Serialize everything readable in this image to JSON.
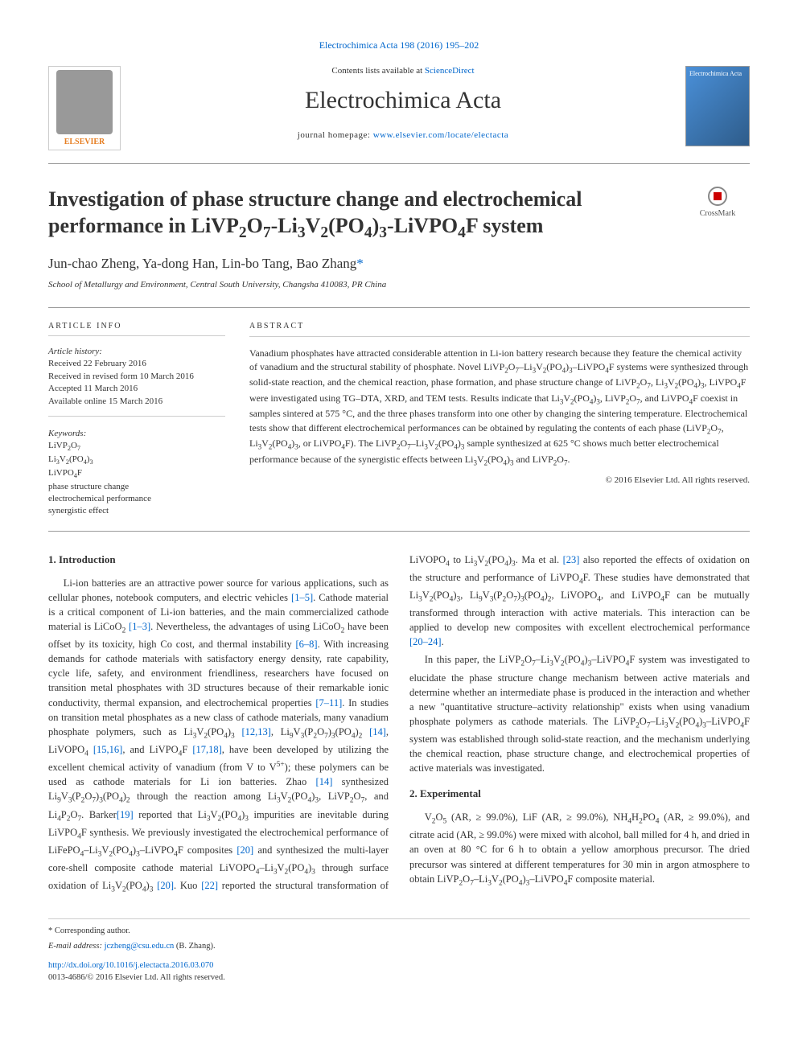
{
  "top_link": {
    "label": "Electrochimica Acta 198 (2016) 195–202"
  },
  "masthead": {
    "contents_prefix": "Contents lists available at ",
    "contents_link": "ScienceDirect",
    "journal_name": "Electrochimica Acta",
    "homepage_prefix": "journal homepage: ",
    "homepage_url": "www.elsevier.com/locate/electacta",
    "elsevier": "ELSEVIER",
    "cover_text": "Electrochimica Acta"
  },
  "crossmark": "CrossMark",
  "title_html": "Investigation of phase structure change and electrochemical performance in LiVP<sub>2</sub>O<sub>7</sub>-Li<sub>3</sub>V<sub>2</sub>(PO<sub>4</sub>)<sub>3</sub>-LiVPO<sub>4</sub>F system",
  "authors_html": "Jun-chao Zheng, Ya-dong Han, Lin-bo Tang, Bao Zhang<span class=\"corr\">*</span>",
  "affiliation": "School of Metallurgy and Environment, Central South University, Changsha 410083, PR China",
  "info": {
    "heading": "ARTICLE INFO",
    "history_label": "Article history:",
    "received": "Received 22 February 2016",
    "revised": "Received in revised form 10 March 2016",
    "accepted": "Accepted 11 March 2016",
    "online": "Available online 15 March 2016",
    "keywords_label": "Keywords:",
    "keywords_html": "LiVP<sub>2</sub>O<sub>7</sub><br>Li<sub>3</sub>V<sub>2</sub>(PO<sub>4</sub>)<sub>3</sub><br>LiVPO<sub>4</sub>F<br>phase structure change<br>electrochemical performance<br>synergistic effect"
  },
  "abstract": {
    "heading": "ABSTRACT",
    "body_html": "Vanadium phosphates have attracted considerable attention in Li-ion battery research because they feature the chemical activity of vanadium and the structural stability of phosphate. Novel LiVP<sub>2</sub>O<sub>7</sub>–Li<sub>3</sub>V<sub>2</sub>(PO<sub>4</sub>)<sub>3</sub>–LiVPO<sub>4</sub>F systems were synthesized through solid-state reaction, and the chemical reaction, phase formation, and phase structure change of LiVP<sub>2</sub>O<sub>7</sub>, Li<sub>3</sub>V<sub>2</sub>(PO<sub>4</sub>)<sub>3</sub>, LiVPO<sub>4</sub>F were investigated using TG–DTA, XRD, and TEM tests. Results indicate that Li<sub>3</sub>V<sub>2</sub>(PO<sub>4</sub>)<sub>3</sub>, LiVP<sub>2</sub>O<sub>7</sub>, and LiVPO<sub>4</sub>F coexist in samples sintered at 575 °C, and the three phases transform into one other by changing the sintering temperature. Electrochemical tests show that different electrochemical performances can be obtained by regulating the contents of each phase (LiVP<sub>2</sub>O<sub>7</sub>, Li<sub>3</sub>V<sub>2</sub>(PO<sub>4</sub>)<sub>3</sub>, or LiVPO<sub>4</sub>F). The LiVP<sub>2</sub>O<sub>7</sub>–Li<sub>3</sub>V<sub>2</sub>(PO<sub>4</sub>)<sub>3</sub> sample synthesized at 625 °C shows much better electrochemical performance because of the synergistic effects between Li<sub>3</sub>V<sub>2</sub>(PO<sub>4</sub>)<sub>3</sub> and LiVP<sub>2</sub>O<sub>7</sub>.",
    "copyright": "© 2016 Elsevier Ltd. All rights reserved."
  },
  "sections": {
    "intro_heading": "1. Introduction",
    "intro_html": "Li-ion batteries are an attractive power source for various applications, such as cellular phones, notebook computers, and electric vehicles <a class=\"ref\">[1–5]</a>. Cathode material is a critical component of Li-ion batteries, and the main commercialized cathode material is LiCoO<sub>2</sub> <a class=\"ref\">[1–3]</a>. Nevertheless, the advantages of using LiCoO<sub>2</sub> have been offset by its toxicity, high Co cost, and thermal instability <a class=\"ref\">[6–8]</a>. With increasing demands for cathode materials with satisfactory energy density, rate capability, cycle life, safety, and environment friendliness, researchers have focused on transition metal phosphates with 3D structures because of their remarkable ionic conductivity, thermal expansion, and electrochemical properties <a class=\"ref\">[7–11]</a>. In studies on transition metal phosphates as a new class of cathode materials, many vanadium phosphate polymers, such as Li<sub>3</sub>V<sub>2</sub>(PO<sub>4</sub>)<sub>3</sub> <a class=\"ref\">[12,13]</a>, Li<sub>9</sub>V<sub>3</sub>(P<sub>2</sub>O<sub>7</sub>)<sub>3</sub>(PO<sub>4</sub>)<sub>2</sub> <a class=\"ref\">[14]</a>, LiVOPO<sub>4</sub> <a class=\"ref\">[15,16]</a>, and LiVPO<sub>4</sub>F <a class=\"ref\">[17,18]</a>, have been developed by utilizing the excellent chemical activity of vanadium (from V to V<sup>5+</sup>); these polymers can be used as cathode materials for Li ion batteries. Zhao <a class=\"ref\">[14]</a> synthesized Li<sub>9</sub>V<sub>3</sub>(P<sub>2</sub>O<sub>7</sub>)<sub>3</sub>(PO<sub>4</sub>)<sub>2</sub> through the reaction among Li<sub>3</sub>V<sub>2</sub>(PO<sub>4</sub>)<sub>3</sub>, LiVP<sub>2</sub>O<sub>7</sub>, and Li<sub>4</sub>P<sub>2</sub>O<sub>7</sub>. Barker<a class=\"ref\">[19]</a> reported that Li<sub>3</sub>V<sub>2</sub>(PO<sub>4</sub>)<sub>3</sub> impurities are inevitable during LiVPO<sub>4</sub>F synthesis. We previously investigated the electrochemical performance of LiFePO<sub>4</sub>–Li<sub>3</sub>V<sub>2</sub>(PO<sub>4</sub>)<sub>3</sub>–LiVPO<sub>4</sub>F composites <a class=\"ref\">[20]</a> and synthesized the multi-layer core-shell composite cathode material LiVOPO<sub>4</sub>–Li<sub>3</sub>V<sub>2</sub>(PO<sub>4</sub>)<sub>3</sub> through surface oxidation of Li<sub>3</sub>V<sub>2</sub>(PO<sub>4</sub>)<sub>3</sub> <a class=\"ref\">[20]</a>. Kuo <a class=\"ref\">[22]</a> reported the structural transformation of LiVOPO<sub>4</sub> to Li<sub>3</sub>V<sub>2</sub>(PO<sub>4</sub>)<sub>3</sub>. Ma et al. <a class=\"ref\">[23]</a> also reported the effects of oxidation on the structure and performance of LiVPO<sub>4</sub>F. These studies have demonstrated that Li<sub>3</sub>V<sub>2</sub>(PO<sub>4</sub>)<sub>3</sub>, Li<sub>9</sub>V<sub>3</sub>(P<sub>2</sub>O<sub>7</sub>)<sub>3</sub>(PO<sub>4</sub>)<sub>2</sub>, LiVOPO<sub>4</sub>, and LiVPO<sub>4</sub>F can be mutually transformed through interaction with active materials. This interaction can be applied to develop new composites with excellent electrochemical performance <a class=\"ref\">[20–24]</a>.",
    "intro2_html": "In this paper, the LiVP<sub>2</sub>O<sub>7</sub>–Li<sub>3</sub>V<sub>2</sub>(PO<sub>4</sub>)<sub>3</sub>–LiVPO<sub>4</sub>F system was investigated to elucidate the phase structure change mechanism between active materials and determine whether an intermediate phase is produced in the interaction and whether a new \"quantitative structure–activity relationship\" exists when using vanadium phosphate polymers as cathode materials. The LiVP<sub>2</sub>O<sub>7</sub>–Li<sub>3</sub>V<sub>2</sub>(PO<sub>4</sub>)<sub>3</sub>–LiVPO<sub>4</sub>F system was established through solid-state reaction, and the mechanism underlying the chemical reaction, phase structure change, and electrochemical properties of active materials was investigated.",
    "exp_heading": "2. Experimental",
    "exp_html": "V<sub>2</sub>O<sub>5</sub> (AR, ≥ 99.0%), LiF (AR, ≥ 99.0%), NH<sub>4</sub>H<sub>2</sub>PO<sub>4</sub> (AR, ≥ 99.0%), and citrate acid (AR, ≥ 99.0%) were mixed with alcohol, ball milled for 4 h, and dried in an oven at 80 °C for 6 h to obtain a yellow amorphous precursor. The dried precursor was sintered at different temperatures for 30 min in argon atmosphere to obtain LiVP<sub>2</sub>O<sub>7</sub>–Li<sub>3</sub>V<sub>2</sub>(PO<sub>4</sub>)<sub>3</sub>–LiVPO<sub>4</sub>F composite material."
  },
  "footer": {
    "corr_label": "* Corresponding author.",
    "email_label": "E-mail address: ",
    "email": "jczheng@csu.edu.cn",
    "email_suffix": " (B. Zhang).",
    "doi": "http://dx.doi.org/10.1016/j.electacta.2016.03.070",
    "issn": "0013-4686/© 2016 Elsevier Ltd. All rights reserved."
  }
}
